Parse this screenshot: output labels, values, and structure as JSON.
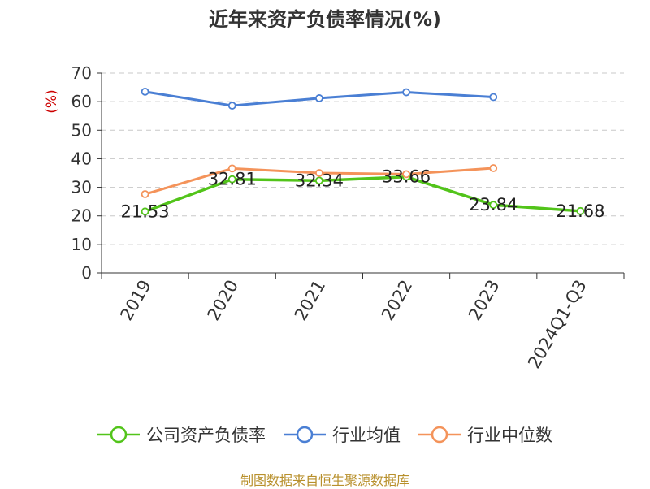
{
  "chart_data": {
    "type": "line",
    "title": "近年来资产负债率情况(%)",
    "ylabel": "(%)",
    "xlabel": "",
    "categories": [
      "2019",
      "2020",
      "2021",
      "2022",
      "2023",
      "2024Q1-Q3"
    ],
    "yticks": [
      "0",
      "10",
      "20",
      "30",
      "40",
      "50",
      "60",
      "70"
    ],
    "ylim": [
      0,
      70
    ],
    "grid": true,
    "legend_position": "bottom",
    "series": [
      {
        "name": "公司资产负债率",
        "color": "#52c41a",
        "values": [
          21.53,
          32.81,
          32.34,
          33.66,
          23.84,
          21.68
        ],
        "labels": [
          "21.53",
          "32.81",
          "32.34",
          "33.66",
          "23.84",
          "21.68"
        ]
      },
      {
        "name": "行业均值",
        "color": "#4a7fd4",
        "values": [
          63.5,
          58.6,
          61.2,
          63.3,
          61.6,
          null
        ]
      },
      {
        "name": "行业中位数",
        "color": "#f4935a",
        "values": [
          27.6,
          36.6,
          35.0,
          34.6,
          36.7,
          null
        ]
      }
    ]
  },
  "source": "制图数据来自恒生聚源数据库"
}
